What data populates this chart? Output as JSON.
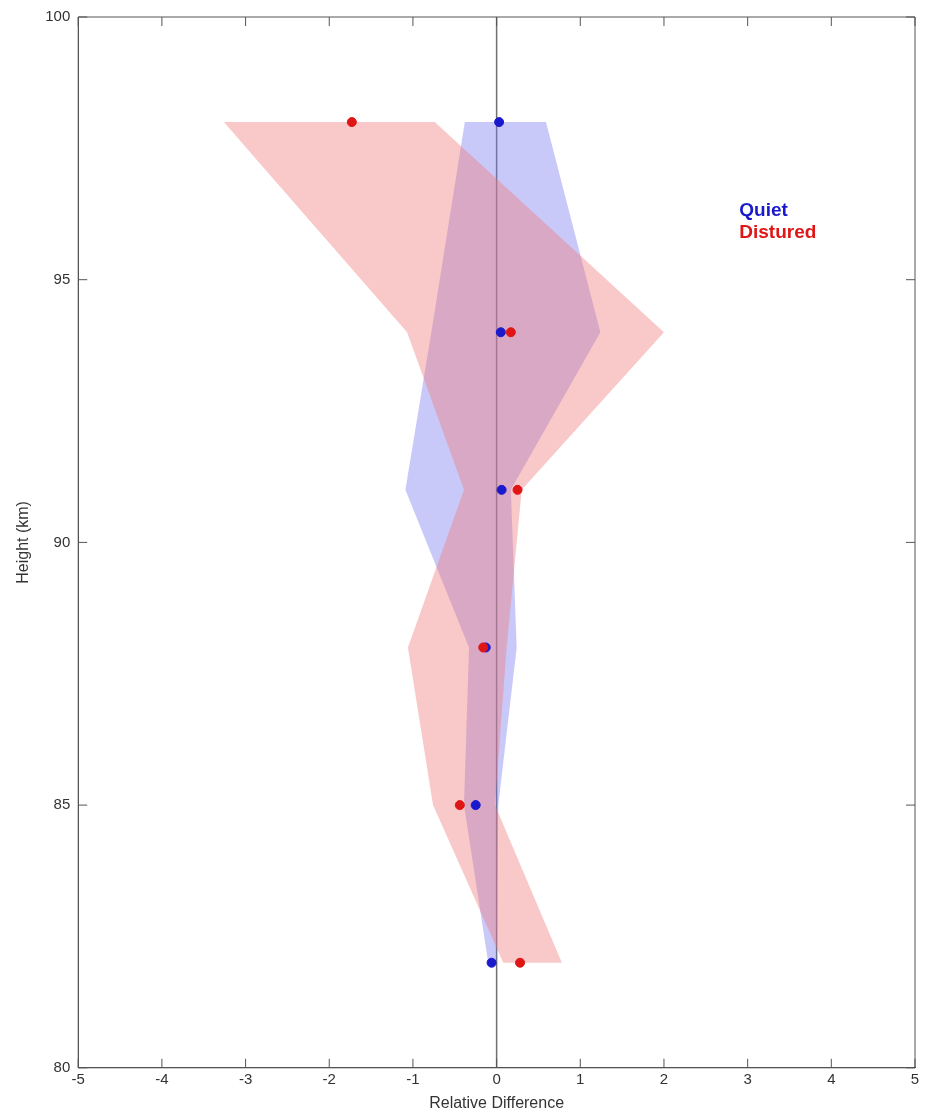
{
  "chart_data": {
    "type": "scatter",
    "xlabel": "Relative Difference",
    "ylabel": "Height (km)",
    "xlim": [
      -5,
      5
    ],
    "xticks": [
      -5,
      -4,
      -3,
      -2,
      -1,
      0,
      1,
      2,
      3,
      4,
      5
    ],
    "ylim": [
      80,
      100
    ],
    "yticks": [
      80,
      85,
      90,
      95,
      100
    ],
    "legend": "top right",
    "marker": "circle",
    "ref_lines": [
      {
        "axis": "x",
        "value": 0,
        "color": "#707070"
      }
    ],
    "series": [
      {
        "type": "area",
        "color": "#7878f0",
        "marker": "none",
        "x": [
          -0.38,
          -0.78,
          -1.09,
          -0.33,
          -0.39,
          -0.1,
          0.0,
          0.02,
          0.24,
          0.17,
          1.24,
          0.59
        ],
        "values": [
          98,
          94,
          91,
          88,
          85,
          82,
          82,
          85,
          88,
          91,
          94,
          98
        ]
      },
      {
        "type": "area",
        "color": "#f07878",
        "marker": "none",
        "x": [
          -3.26,
          -1.07,
          -0.39,
          -1.06,
          -0.76,
          0.08,
          0.78,
          -0.02,
          0.12,
          0.3,
          2.0,
          -0.74
        ],
        "values": [
          98,
          94,
          91,
          88,
          85,
          82,
          82,
          85,
          88,
          91,
          94,
          98
        ]
      },
      {
        "name": "Quiet",
        "color": "#1a1acc",
        "x": [
          0.03,
          0.05,
          0.06,
          -0.13,
          -0.25,
          -0.06
        ],
        "values": [
          98,
          94,
          91,
          88,
          85,
          82
        ]
      },
      {
        "name": "Distured",
        "color": "#e01515",
        "x": [
          -1.73,
          0.17,
          0.25,
          -0.16,
          -0.44,
          0.28
        ],
        "values": [
          98,
          94,
          91,
          88,
          85,
          82
        ]
      }
    ]
  }
}
